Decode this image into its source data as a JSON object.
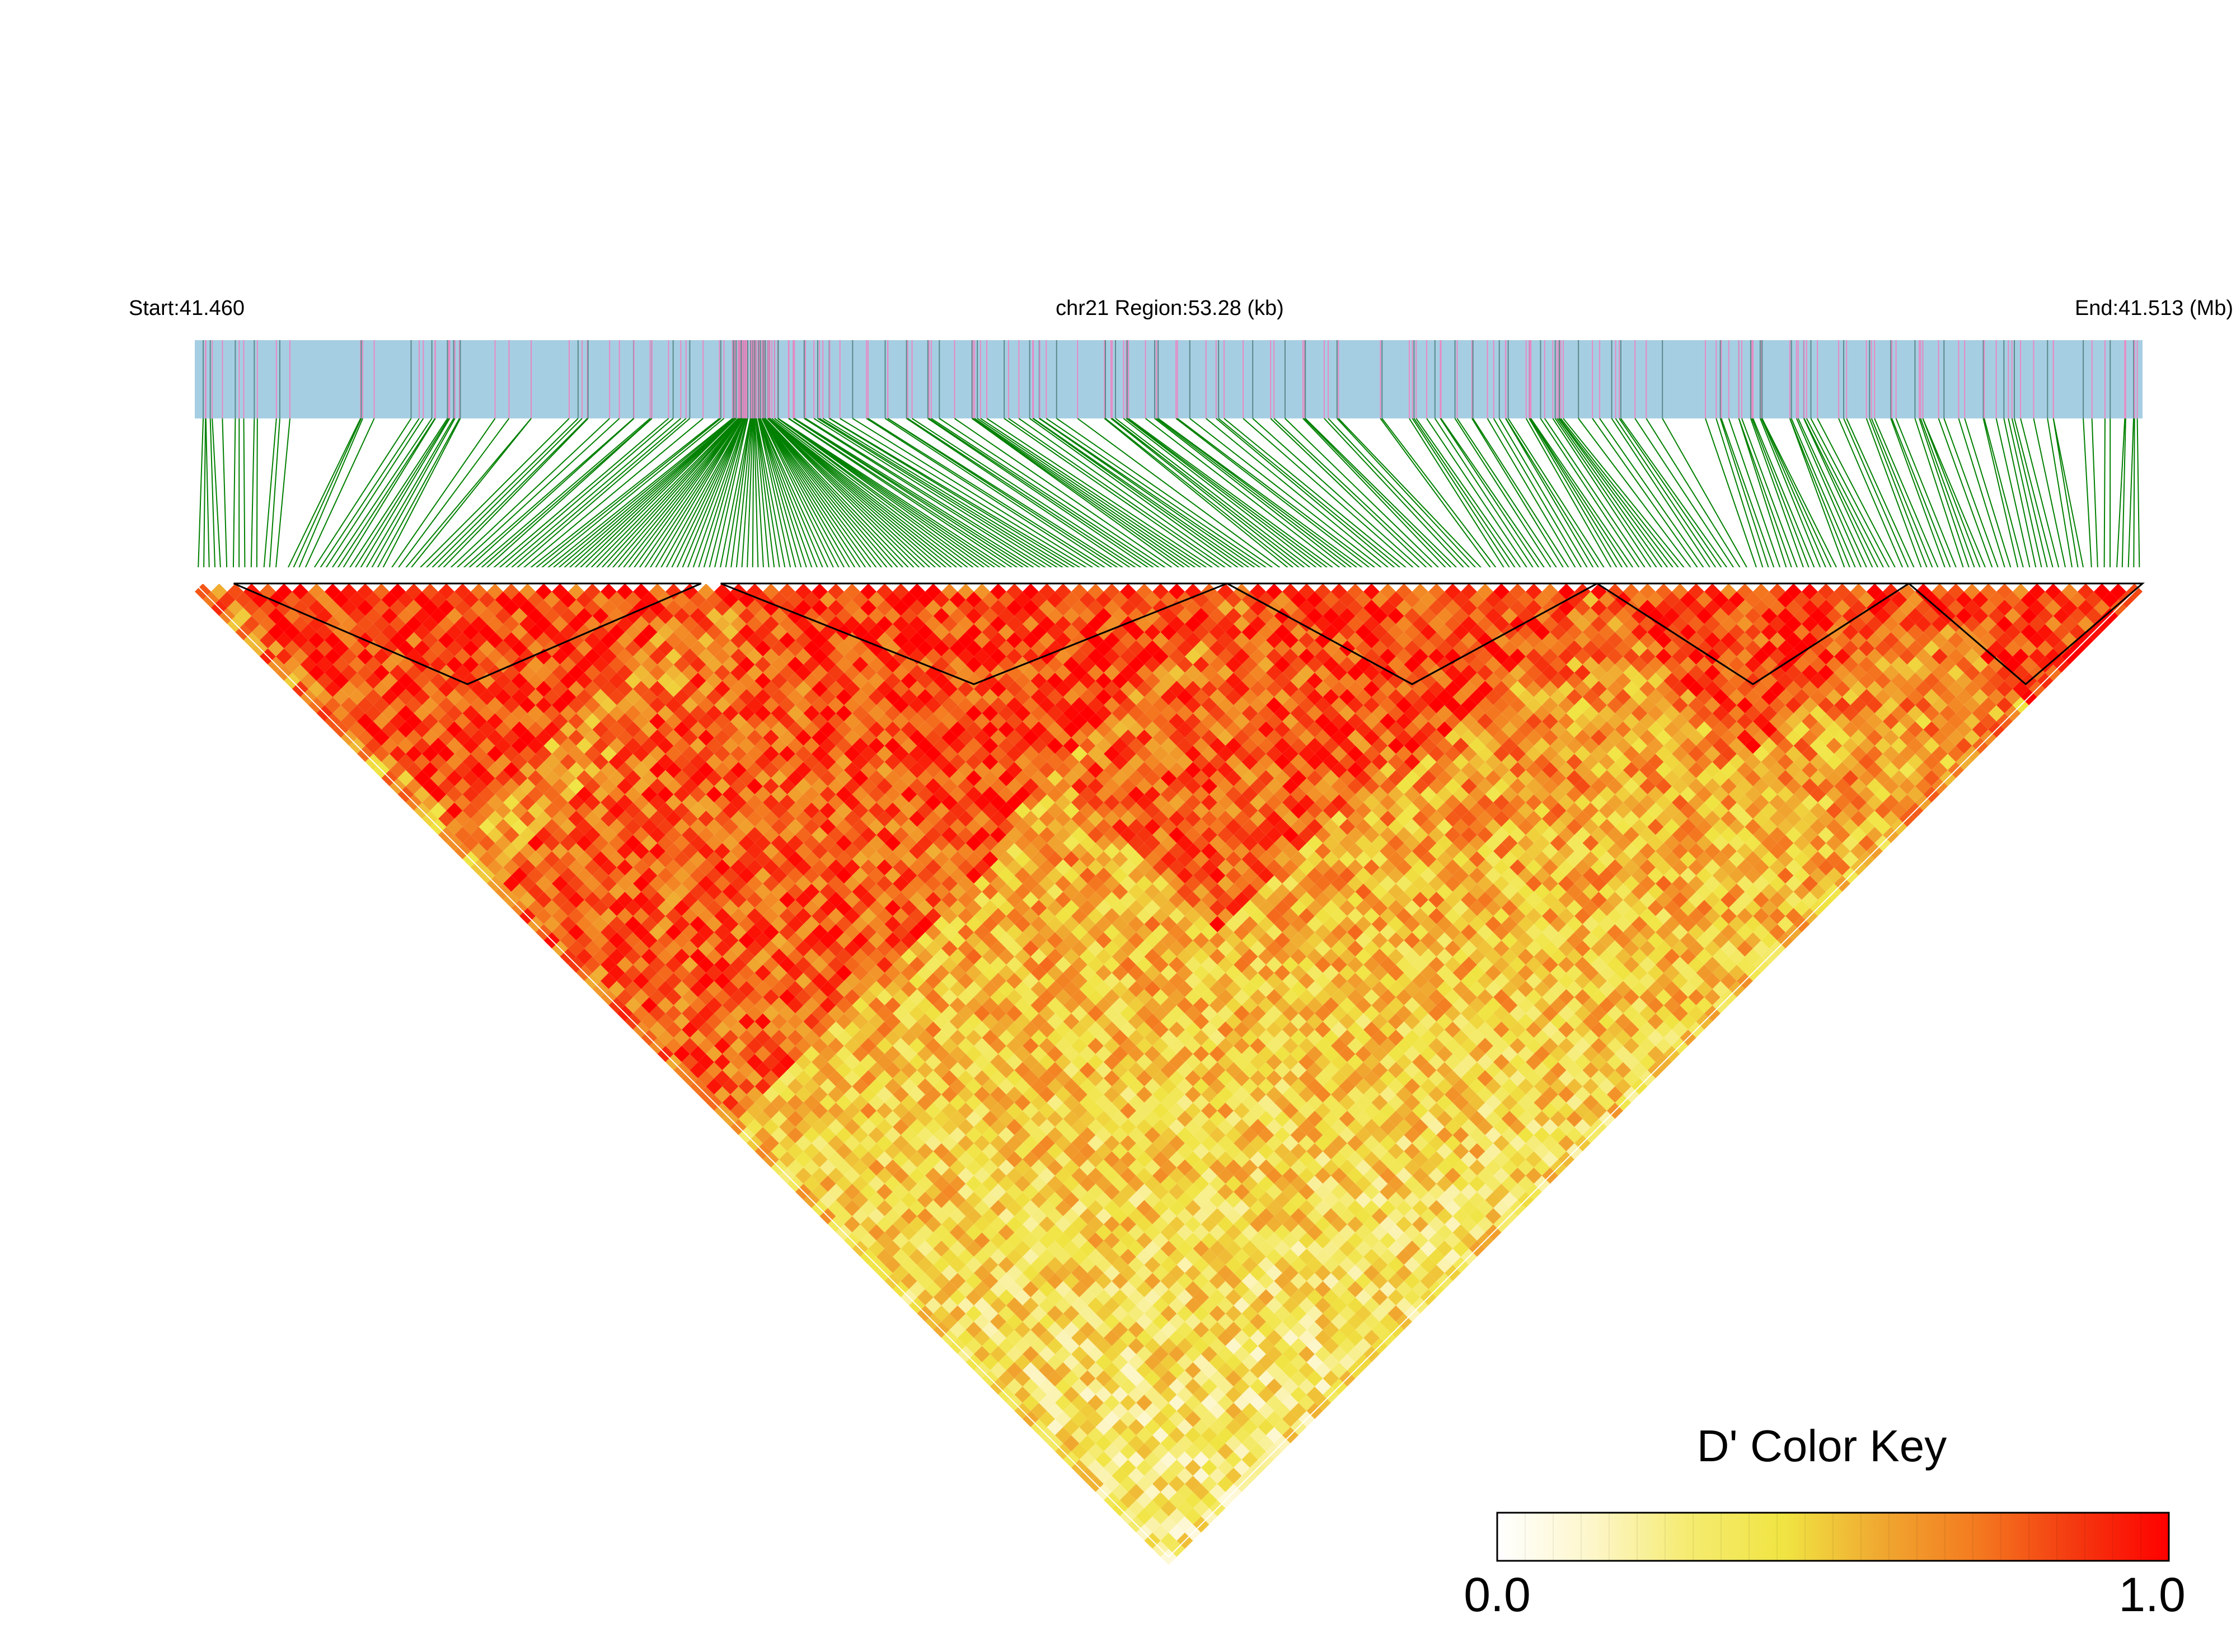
{
  "chart_data": {
    "type": "heatmap",
    "subtype": "LD triangle heatmap (LDBlockShow style)",
    "header": {
      "start_label": "Start:41.460",
      "region_label": "chr21 Region:53.28 (kb)",
      "end_label": "End:41.513 (Mb)"
    },
    "region": {
      "chromosome": "chr21",
      "start_mb": 41.46,
      "end_mb": 41.513,
      "length_kb": 53.28
    },
    "snp_track": {
      "approx_snp_count": 330,
      "track_color": "#a6cee3",
      "snp_mark_color": "#e78ac3",
      "dense_snp_window_fraction": [
        0.275,
        0.3
      ]
    },
    "connector_color": "#008000",
    "heatmap": {
      "measure": "D'",
      "value_range": [
        0.0,
        1.0
      ],
      "high_ld_blocks": [
        {
          "from_fraction": 0.02,
          "to_fraction": 0.26
        },
        {
          "from_fraction": 0.27,
          "to_fraction": 0.53
        },
        {
          "from_fraction": 0.53,
          "to_fraction": 0.72
        },
        {
          "from_fraction": 0.72,
          "to_fraction": 0.88
        },
        {
          "from_fraction": 0.88,
          "to_fraction": 1.0
        }
      ],
      "block_outline_color": "#000000"
    },
    "color_key": {
      "title": "D' Color Key",
      "min_label": "0.0",
      "max_label": "1.0",
      "stops": [
        "#ffffff",
        "#fdf6c9",
        "#f5eb70",
        "#f0e442",
        "#f0a830",
        "#f47a20",
        "#f43a10",
        "#ff0000"
      ]
    }
  }
}
